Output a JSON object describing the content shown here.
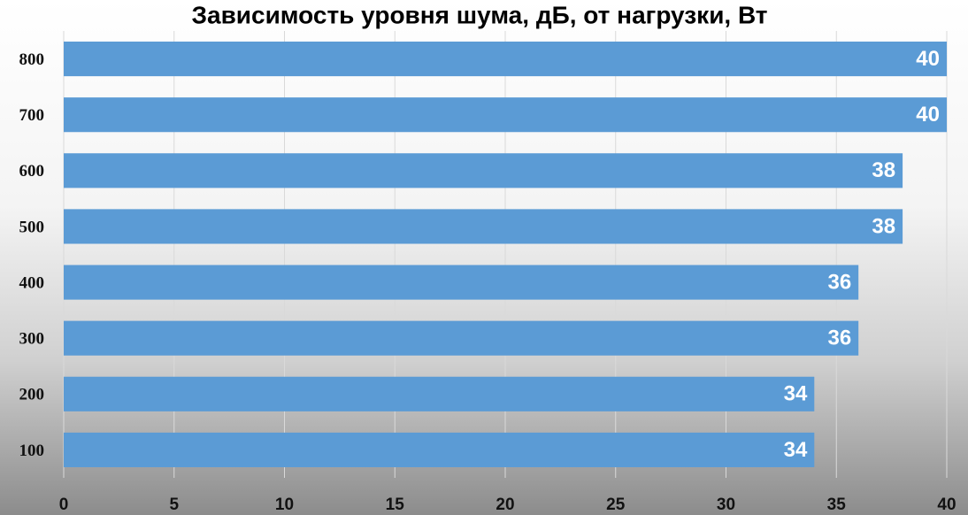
{
  "chart_data": {
    "type": "hbar",
    "title": "Зависимость уровня шума, дБ, от нагрузки, Вт",
    "categories": [
      "800",
      "700",
      "600",
      "500",
      "400",
      "300",
      "200",
      "100"
    ],
    "values": [
      40,
      40,
      38,
      38,
      36,
      36,
      34,
      34
    ],
    "color": "#5b9bd5",
    "xlim": [
      0,
      40
    ],
    "xticks": [
      0,
      5,
      10,
      15,
      20,
      25,
      30,
      35,
      40
    ],
    "grid": true
  }
}
